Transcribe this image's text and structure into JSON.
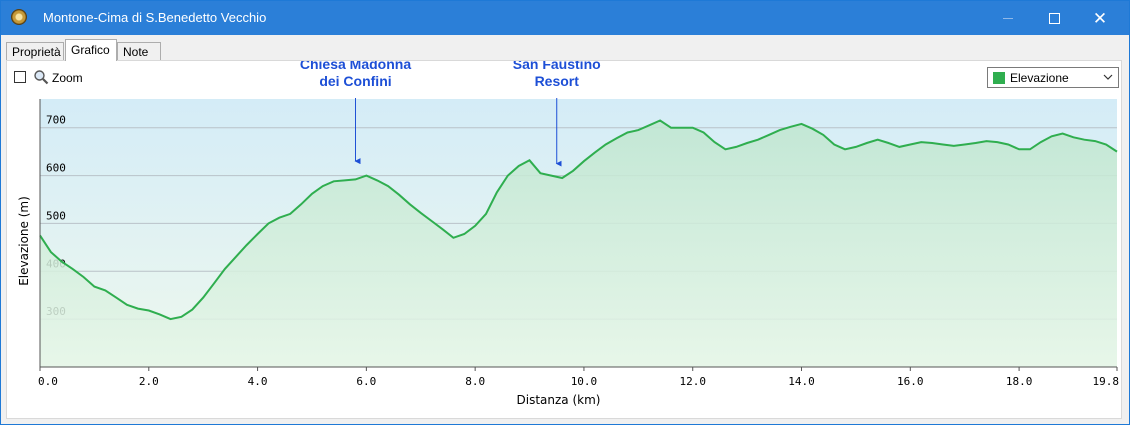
{
  "window": {
    "title": "Montone-Cima di S.Benedetto Vecchio",
    "app_icon": "app-icon",
    "controls": {
      "minimize_icon": "minimize-icon",
      "maximize_icon": "maximize-icon",
      "close_icon": "close-icon",
      "close_glyph": "✕"
    }
  },
  "tabs": [
    {
      "label": "Proprietà",
      "active": false
    },
    {
      "label": "Grafico",
      "active": true
    },
    {
      "label": "Note",
      "active": false
    }
  ],
  "toolbar": {
    "zoom_label": "Zoom",
    "zoom_checked": false,
    "zoom_icon": "magnifier-icon"
  },
  "series_select": {
    "value": "Elevazione",
    "color": "#2fae4f"
  },
  "chart_data": {
    "type": "area",
    "xlabel": "Distanza  (km)",
    "ylabel": "Elevazione (m)",
    "xlim": [
      0,
      19.8
    ],
    "ylim": [
      200,
      760
    ],
    "x_ticks": [
      "0.0",
      "2.0",
      "4.0",
      "6.0",
      "8.0",
      "10.0",
      "12.0",
      "14.0",
      "16.0",
      "18.0",
      "19.8"
    ],
    "x_tick_values": [
      0,
      2,
      4,
      6,
      8,
      10,
      12,
      14,
      16,
      18,
      19.8
    ],
    "y_ticks": [
      "300",
      "400",
      "500",
      "600",
      "700"
    ],
    "y_tick_values": [
      300,
      400,
      500,
      600,
      700
    ],
    "grid": true,
    "line_color": "#2fae4f",
    "series": [
      {
        "name": "Elevazione",
        "x": [
          0.0,
          0.2,
          0.4,
          0.6,
          0.8,
          1.0,
          1.2,
          1.4,
          1.6,
          1.8,
          2.0,
          2.2,
          2.4,
          2.6,
          2.8,
          3.0,
          3.2,
          3.4,
          3.6,
          3.8,
          4.0,
          4.2,
          4.4,
          4.6,
          4.8,
          5.0,
          5.2,
          5.4,
          5.6,
          5.8,
          6.0,
          6.2,
          6.4,
          6.6,
          6.8,
          7.0,
          7.2,
          7.4,
          7.6,
          7.8,
          8.0,
          8.2,
          8.4,
          8.6,
          8.8,
          9.0,
          9.2,
          9.4,
          9.6,
          9.8,
          10.0,
          10.2,
          10.4,
          10.6,
          10.8,
          11.0,
          11.2,
          11.4,
          11.6,
          11.8,
          12.0,
          12.2,
          12.4,
          12.6,
          12.8,
          13.0,
          13.2,
          13.4,
          13.6,
          13.8,
          14.0,
          14.2,
          14.4,
          14.6,
          14.8,
          15.0,
          15.2,
          15.4,
          15.6,
          15.8,
          16.0,
          16.2,
          16.4,
          16.6,
          16.8,
          17.0,
          17.2,
          17.4,
          17.6,
          17.8,
          18.0,
          18.2,
          18.4,
          18.6,
          18.8,
          19.0,
          19.2,
          19.4,
          19.6,
          19.8
        ],
        "values": [
          475,
          440,
          420,
          405,
          388,
          368,
          360,
          345,
          330,
          322,
          318,
          310,
          300,
          305,
          320,
          345,
          375,
          405,
          430,
          455,
          478,
          500,
          512,
          520,
          540,
          562,
          578,
          588,
          590,
          592,
          600,
          590,
          578,
          560,
          540,
          522,
          505,
          488,
          470,
          478,
          495,
          520,
          565,
          600,
          620,
          632,
          605,
          600,
          595,
          610,
          630,
          648,
          665,
          678,
          690,
          695,
          705,
          715,
          700,
          700,
          700,
          690,
          670,
          655,
          660,
          668,
          675,
          685,
          695,
          702,
          708,
          698,
          685,
          665,
          655,
          660,
          668,
          675,
          668,
          660,
          665,
          670,
          668,
          665,
          662,
          665,
          668,
          672,
          670,
          665,
          655,
          655,
          670,
          682,
          688,
          680,
          675,
          672,
          665,
          650
        ]
      }
    ],
    "annotations": [
      {
        "lines": [
          "Chiesa Madonna",
          "dei Confini"
        ],
        "x": 5.8,
        "y": 605
      },
      {
        "lines": [
          "San Faustino",
          "Resort"
        ],
        "x": 9.5,
        "y": 600
      }
    ]
  }
}
